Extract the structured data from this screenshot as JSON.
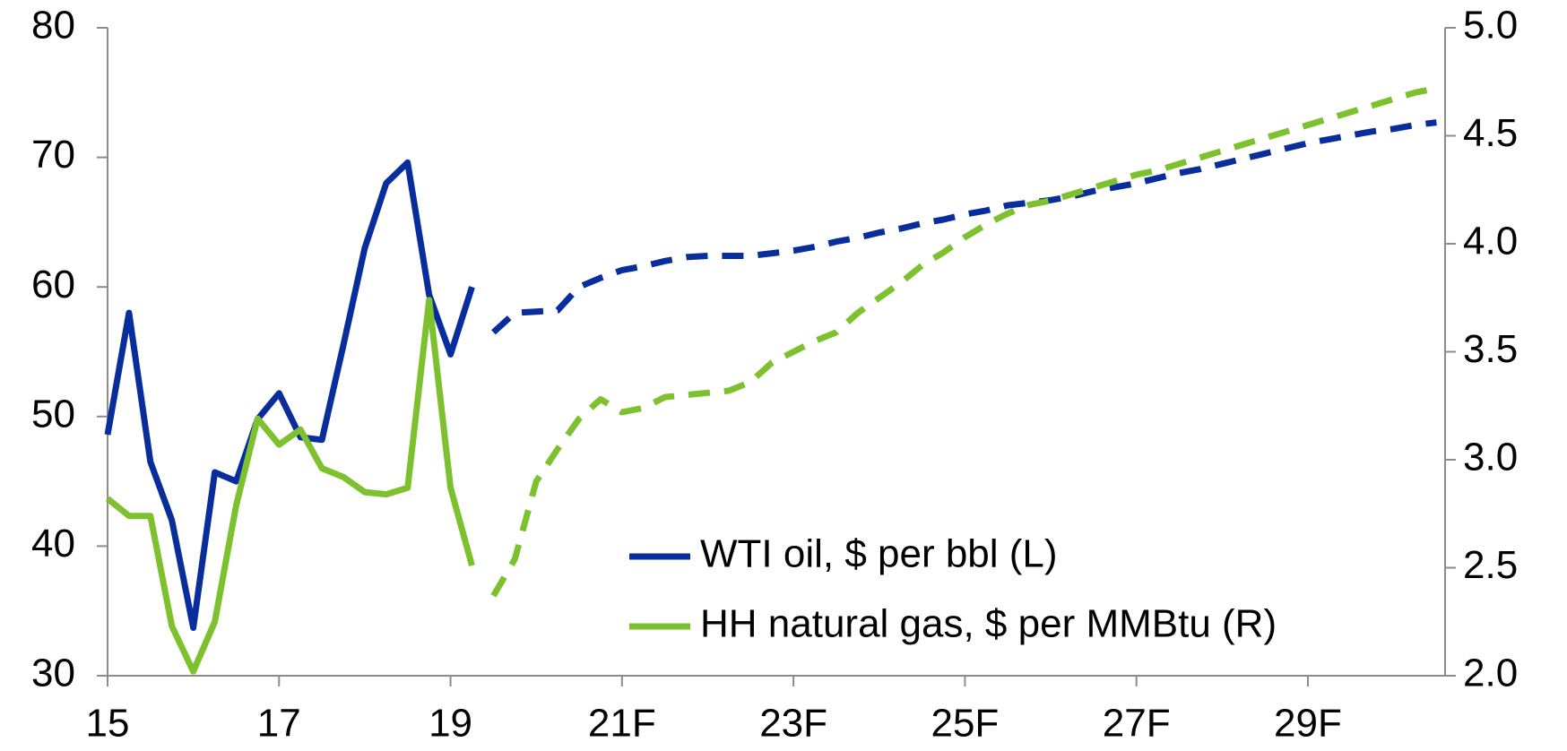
{
  "chart_data": {
    "type": "line",
    "x": [
      15,
      15.25,
      15.5,
      15.75,
      16,
      16.25,
      16.5,
      16.75,
      17,
      17.25,
      17.5,
      17.75,
      18,
      18.25,
      18.5,
      18.75,
      19,
      19.25,
      19.5,
      19.75,
      20,
      20.25,
      20.5,
      20.75,
      21,
      21.25,
      21.5,
      21.75,
      22,
      22.25,
      22.5,
      22.75,
      23,
      23.25,
      23.5,
      23.75,
      24,
      24.25,
      24.5,
      24.75,
      25,
      25.25,
      25.5,
      25.75,
      26,
      26.25,
      26.5,
      26.75,
      27,
      27.25,
      27.5,
      27.75,
      28,
      28.25,
      28.5,
      28.75,
      29,
      29.25,
      29.5,
      29.75,
      30,
      30.25,
      30.5
    ],
    "series": [
      {
        "name": "WTI oil, $ per bbl (L)",
        "color": "#0a2d9c",
        "axis": "y",
        "values": [
          48.6,
          58.0,
          46.5,
          42.0,
          33.7,
          45.7,
          45.0,
          49.8,
          51.8,
          48.4,
          48.2,
          55.5,
          63.0,
          68.0,
          69.6,
          59.4,
          54.8,
          60.0,
          null,
          null,
          null,
          null,
          null,
          null,
          null,
          null,
          null,
          null,
          null,
          null,
          null,
          null,
          null,
          null,
          null,
          null,
          null,
          null,
          null,
          null,
          null,
          null,
          null,
          null,
          null,
          null,
          null,
          null,
          null,
          null,
          null,
          null,
          null,
          null,
          null,
          null,
          null,
          null,
          null,
          null,
          null,
          null,
          null
        ],
        "forecast": [
          null,
          null,
          null,
          null,
          null,
          null,
          null,
          null,
          null,
          null,
          null,
          null,
          null,
          null,
          null,
          null,
          null,
          null,
          56.5,
          58.0,
          58.1,
          58.2,
          60.0,
          60.7,
          61.3,
          61.6,
          62.0,
          62.3,
          62.4,
          62.4,
          62.4,
          62.6,
          62.8,
          63.1,
          63.5,
          63.8,
          64.2,
          64.5,
          64.9,
          65.2,
          65.6,
          65.9,
          66.3,
          66.5,
          66.7,
          67.0,
          67.4,
          67.7,
          68.0,
          68.4,
          68.8,
          69.1,
          69.5,
          69.9,
          70.3,
          70.7,
          71.1,
          71.4,
          71.7,
          72.0,
          72.2,
          72.5,
          72.7
        ]
      },
      {
        "name": "HH natural gas, $ per MMBtu (R)",
        "color": "#7dc22e",
        "axis": "y2",
        "values": [
          2.82,
          2.74,
          2.74,
          2.23,
          2.02,
          2.25,
          2.79,
          3.19,
          3.07,
          3.14,
          2.96,
          2.92,
          2.85,
          2.84,
          2.87,
          3.74,
          2.87,
          2.51,
          null,
          null,
          null,
          null,
          null,
          null,
          null,
          null,
          null,
          null,
          null,
          null,
          null,
          null,
          null,
          null,
          null,
          null,
          null,
          null,
          null,
          null,
          null,
          null,
          null,
          null,
          null,
          null,
          null,
          null,
          null,
          null,
          null,
          null,
          null,
          null,
          null,
          null,
          null,
          null,
          null,
          null,
          null,
          null,
          null
        ],
        "forecast": [
          null,
          null,
          null,
          null,
          null,
          null,
          null,
          null,
          null,
          null,
          null,
          null,
          null,
          null,
          null,
          null,
          null,
          null,
          2.37,
          2.54,
          2.9,
          3.05,
          3.19,
          3.28,
          3.22,
          3.24,
          3.29,
          3.3,
          3.31,
          3.32,
          3.36,
          3.45,
          3.5,
          3.55,
          3.59,
          3.68,
          3.75,
          3.82,
          3.9,
          3.96,
          4.03,
          4.09,
          4.14,
          4.18,
          4.2,
          4.23,
          4.26,
          4.29,
          4.32,
          4.34,
          4.37,
          4.4,
          4.43,
          4.46,
          4.49,
          4.52,
          4.55,
          4.58,
          4.61,
          4.64,
          4.67,
          4.7,
          4.72
        ]
      }
    ],
    "xlim": [
      15,
      30.6
    ],
    "xticks": [
      15,
      17,
      19,
      {
        "value": 21,
        "label": "21F"
      },
      {
        "value": 23,
        "label": "23F"
      },
      {
        "value": 25,
        "label": "25F"
      },
      {
        "value": 27,
        "label": "27F"
      },
      {
        "value": 29,
        "label": "29F"
      }
    ],
    "ylim": [
      30,
      80
    ],
    "yticks": [
      30,
      40,
      50,
      60,
      70,
      80
    ],
    "y2lim": [
      2,
      5
    ],
    "y2ticks": [
      {
        "value": 2,
        "label": "2.0"
      },
      2.5,
      {
        "value": 3,
        "label": "3.0"
      },
      3.5,
      {
        "value": 4,
        "label": "4.0"
      },
      4.5,
      {
        "value": 5,
        "label": "5.0"
      }
    ],
    "grid": false,
    "legend": "lower right"
  }
}
